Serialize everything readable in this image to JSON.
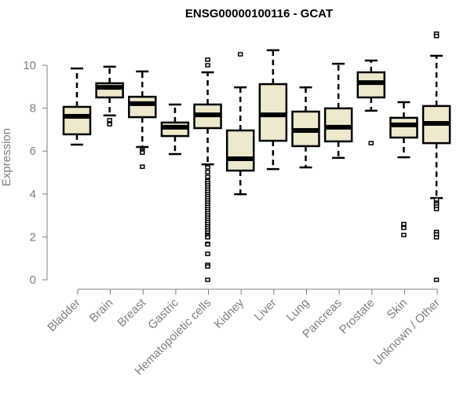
{
  "chart_data": {
    "type": "boxplot",
    "title": "ENSG00000100116 - GCAT",
    "xlabel": "",
    "ylabel": "Expression",
    "ylim": [
      0,
      10.8
    ],
    "yticks": [
      0,
      2,
      4,
      6,
      8,
      10
    ],
    "grid": false,
    "legend": "none",
    "box_fill": "#EEE8CD",
    "line_color": "#000000",
    "axis_color": "#7F7F7F",
    "categories": [
      "Bladder",
      "Brain",
      "Breast",
      "Gastric",
      "Hematopoietic cells",
      "Kidney",
      "Liver",
      "Lung",
      "Pancreas",
      "Prostate",
      "Skin",
      "Unknown / Other"
    ],
    "series": [
      {
        "name": "Bladder",
        "whisker_low": 6.3,
        "q1": 6.78,
        "median": 7.62,
        "q3": 8.06,
        "whisker_high": 9.85,
        "outliers": []
      },
      {
        "name": "Brain",
        "whisker_low": 7.66,
        "q1": 8.5,
        "median": 8.97,
        "q3": 9.16,
        "whisker_high": 9.93,
        "outliers": [
          7.44,
          7.25
        ]
      },
      {
        "name": "Breast",
        "whisker_low": 6.19,
        "q1": 7.58,
        "median": 8.21,
        "q3": 8.53,
        "whisker_high": 9.71,
        "outliers": [
          6.04,
          5.97,
          5.93,
          5.27
        ]
      },
      {
        "name": "Gastric",
        "whisker_low": 5.86,
        "q1": 6.7,
        "median": 7.11,
        "q3": 7.33,
        "whisker_high": 8.17,
        "outliers": []
      },
      {
        "name": "Hematopoietic cells",
        "whisker_low": 5.38,
        "q1": 7.07,
        "median": 7.69,
        "q3": 8.17,
        "whisker_high": 9.67,
        "outliers": [
          10.26,
          10.0,
          5.24,
          5.02,
          4.8,
          4.6,
          4.5,
          4.4,
          4.3,
          4.2,
          4.1,
          4.0,
          3.9,
          3.8,
          3.7,
          3.6,
          3.5,
          3.4,
          3.3,
          3.2,
          3.1,
          3.0,
          2.9,
          2.8,
          2.7,
          2.6,
          2.5,
          2.4,
          2.3,
          2.2,
          2.1,
          2.05,
          1.98,
          1.68,
          1.65,
          1.21,
          0.7,
          0.62,
          0.0
        ]
      },
      {
        "name": "Kidney",
        "whisker_low": 3.99,
        "q1": 5.09,
        "median": 5.64,
        "q3": 6.96,
        "whisker_high": 8.97,
        "outliers": [
          10.51
        ]
      },
      {
        "name": "Liver",
        "whisker_low": 5.16,
        "q1": 6.48,
        "median": 7.69,
        "q3": 9.12,
        "whisker_high": 10.7,
        "outliers": []
      },
      {
        "name": "Lung",
        "whisker_low": 5.24,
        "q1": 6.23,
        "median": 6.96,
        "q3": 7.84,
        "whisker_high": 8.97,
        "outliers": []
      },
      {
        "name": "Pancreas",
        "whisker_low": 5.68,
        "q1": 6.45,
        "median": 7.11,
        "q3": 7.99,
        "whisker_high": 10.07,
        "outliers": []
      },
      {
        "name": "Prostate",
        "whisker_low": 7.88,
        "q1": 8.5,
        "median": 9.19,
        "q3": 9.67,
        "whisker_high": 10.22,
        "outliers": [
          6.37
        ]
      },
      {
        "name": "Skin",
        "whisker_low": 5.71,
        "q1": 6.63,
        "median": 7.22,
        "q3": 7.55,
        "whisker_high": 8.28,
        "outliers": [
          2.6,
          2.42,
          2.09
        ]
      },
      {
        "name": "Unknown / Other",
        "whisker_low": 3.81,
        "q1": 6.37,
        "median": 7.29,
        "q3": 8.1,
        "whisker_high": 10.44,
        "outliers": [
          11.47,
          11.36,
          3.74,
          3.59,
          3.52,
          3.41,
          3.3,
          2.23,
          2.12,
          1.98,
          0.0
        ]
      }
    ]
  }
}
